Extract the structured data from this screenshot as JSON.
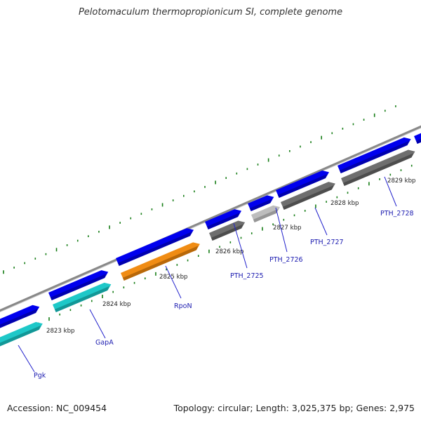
{
  "title": "Pelotomaculum thermopropionicum SI, complete genome",
  "footer": {
    "accession": "Accession: NC_009454",
    "summary": "Topology: circular; Length: 3,025,375 bp; Genes: 2,975"
  },
  "colors": {
    "backbone": "#888888",
    "forward_gene": "#0000ee",
    "reverse_gene_default": "#6e6e6e",
    "tick": "#167d16",
    "label_line": "#2222cc",
    "label_text": "#1b1bb0",
    "gene_cyan": "#1ec8c8",
    "gene_orange": "#f08c14",
    "gene_lightgray": "#bdbdbd"
  },
  "scale_labels": [
    "2823 kbp",
    "2824 kbp",
    "2825 kbp",
    "2826 kbp",
    "2827 kbp",
    "2828 kbp",
    "2829 kbp"
  ],
  "gene_labels": [
    "Pgk",
    "GapA",
    "RpoN",
    "PTH_2725",
    "PTH_2726",
    "PTH_2727",
    "PTH_2728"
  ]
}
